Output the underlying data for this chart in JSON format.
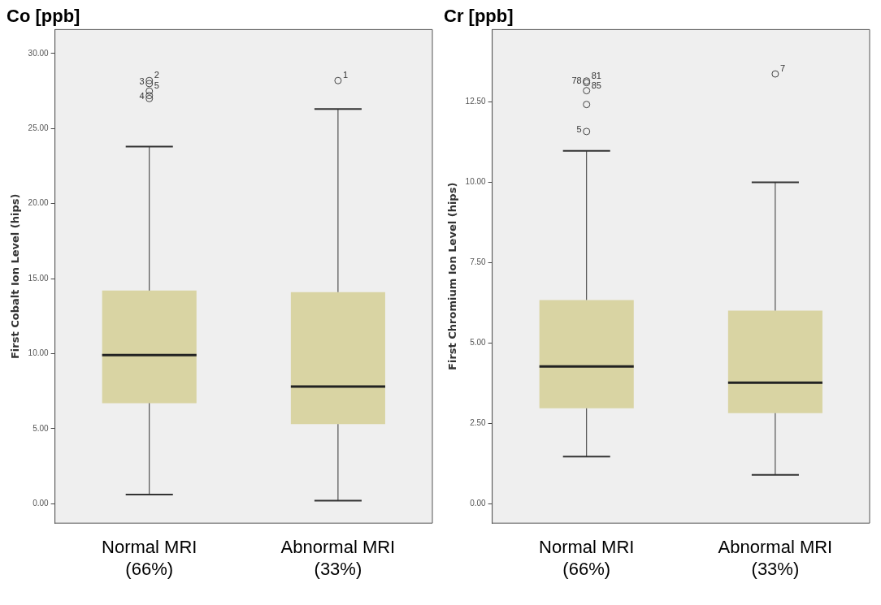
{
  "chart_data": [
    {
      "type": "box",
      "title": "Co [ppb]",
      "ylabel": "First Cobalt Ion Level (hips)",
      "categories": [
        "Normal MRI (66%)",
        "Abnormal MRI (33%)"
      ],
      "color": "#d9d4a3",
      "boxes": [
        {
          "low": 0.6,
          "q1": 6.7,
          "median": 9.9,
          "q3": 14.2,
          "high": 23.8,
          "outliers": [
            28.2,
            28.0,
            27.5,
            27.0,
            27.2
          ]
        },
        {
          "low": 0.2,
          "q1": 5.3,
          "median": 7.8,
          "q3": 14.1,
          "high": 26.3,
          "outliers": [
            28.2
          ]
        }
      ],
      "ylim": [
        -1.3,
        31.6
      ],
      "yticks": [
        {
          "value": 0,
          "label": "0.00"
        },
        {
          "value": 5,
          "label": "5.00"
        },
        {
          "value": 10,
          "label": "10.00"
        },
        {
          "value": 15,
          "label": "15.00"
        },
        {
          "value": 20,
          "label": "20.00"
        },
        {
          "value": 25,
          "label": "25.00"
        },
        {
          "value": 30,
          "label": "30.00"
        }
      ],
      "annotations": [
        "2",
        "1",
        "3",
        "5",
        "4"
      ],
      "grid": false
    },
    {
      "type": "box",
      "title": "Cr [ppb]",
      "ylabel": "First Chromium Ion Level (hips)",
      "categories": [
        "Normal MRI (66%)",
        "Abnormal MRI (33%)"
      ],
      "color": "#d9d4a3",
      "boxes": [
        {
          "low": 1.47,
          "q1": 2.97,
          "median": 4.27,
          "q3": 6.34,
          "high": 10.98,
          "outliers": [
            13.15,
            13.1,
            12.85,
            11.58,
            12.42
          ]
        },
        {
          "low": 0.9,
          "q1": 2.82,
          "median": 3.77,
          "q3": 6.01,
          "high": 10.0,
          "outliers": [
            13.37
          ]
        }
      ],
      "ylim": [
        -0.6,
        14.75
      ],
      "yticks": [
        {
          "value": 0,
          "label": "0.00"
        },
        {
          "value": 2.5,
          "label": "2.50"
        },
        {
          "value": 5,
          "label": "5.00"
        },
        {
          "value": 7.5,
          "label": "7.50"
        },
        {
          "value": 10,
          "label": "10.00"
        },
        {
          "value": 12.5,
          "label": "12.50"
        }
      ],
      "annotations": [
        "81",
        "7",
        "78",
        "85",
        "5"
      ],
      "grid": false
    }
  ]
}
